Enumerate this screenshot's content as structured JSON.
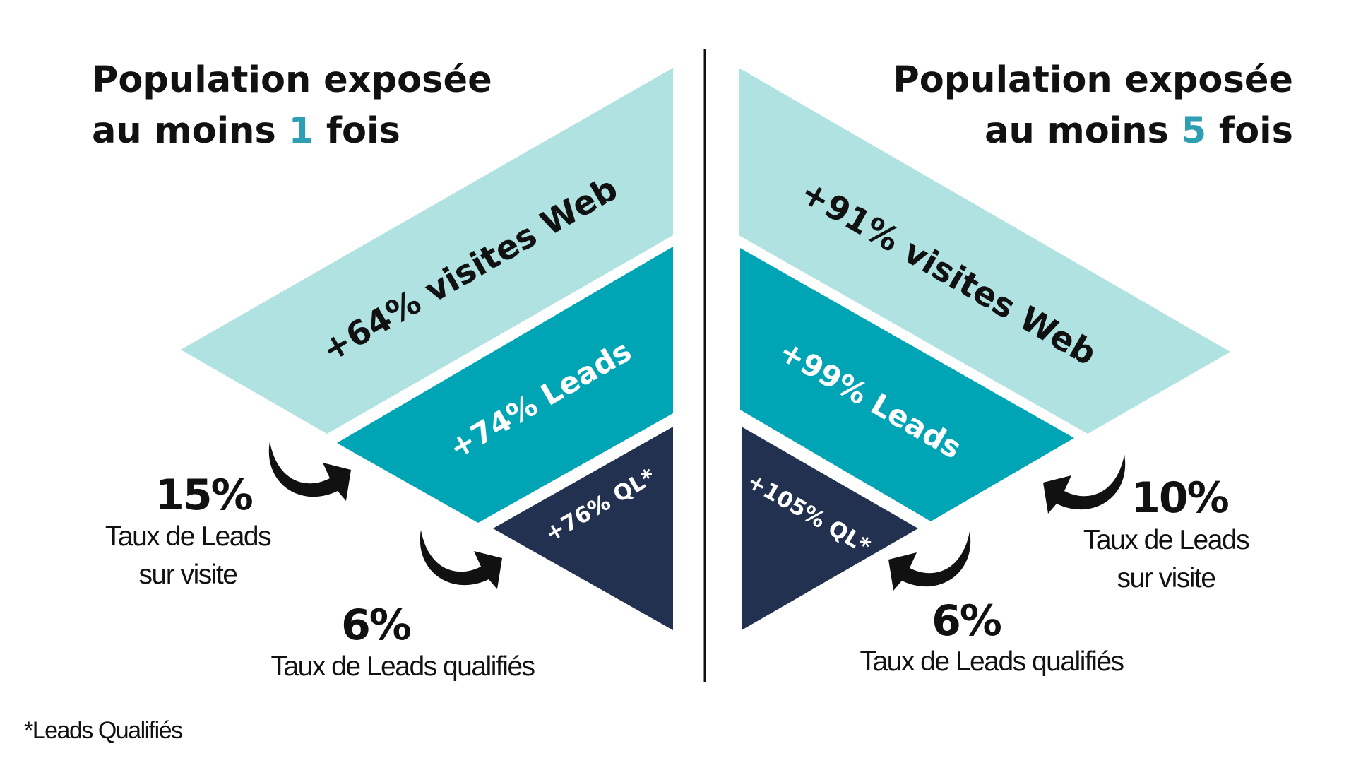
{
  "colors": {
    "visits": "#b0e2e2",
    "leads": "#00a5b5",
    "qualified": "#22314f",
    "accent": "#2e9fb3",
    "text_dark": "#111111",
    "text_light": "#ffffff"
  },
  "left": {
    "title": {
      "line1": "Population exposée",
      "line2_pre": "au moins ",
      "line2_num": "1",
      "line2_post": " fois"
    },
    "funnel": {
      "visits": "+64% visites Web",
      "leads": "+74% Leads",
      "qualified": "+76% QL*"
    },
    "rate_leads": {
      "value": "15%",
      "line1": "Taux de Leads",
      "line2": "sur visite"
    },
    "rate_qualified": {
      "value": "6%",
      "label": "Taux de Leads qualifiés"
    }
  },
  "right": {
    "title": {
      "line1": "Population exposée",
      "line2_pre": "au moins ",
      "line2_num": "5",
      "line2_post": " fois"
    },
    "funnel": {
      "visits": "+91% visites Web",
      "leads": "+99% Leads",
      "qualified": "+105% QL*"
    },
    "rate_leads": {
      "value": "10%",
      "line1": "Taux de Leads",
      "line2": "sur visite"
    },
    "rate_qualified": {
      "value": "6%",
      "label": "Taux de Leads qualifiés"
    }
  },
  "footnote": "*Leads Qualifiés"
}
